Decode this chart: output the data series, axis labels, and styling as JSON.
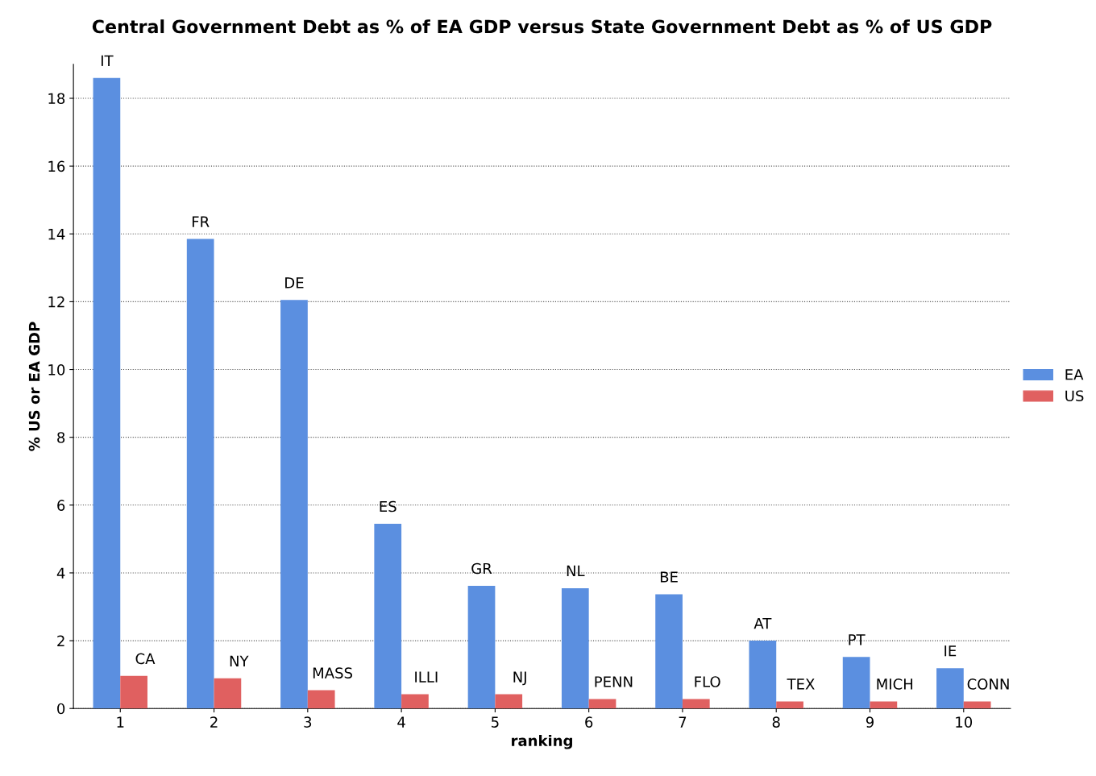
{
  "chart_data": {
    "type": "bar",
    "title": "Central Government Debt as % of EA GDP versus State Government Debt as % of US GDP",
    "xlabel": "ranking",
    "ylabel": "% US or EA GDP",
    "categories": [
      "1",
      "2",
      "3",
      "4",
      "5",
      "6",
      "7",
      "8",
      "9",
      "10"
    ],
    "series": [
      {
        "name": "EA",
        "color": "#5b8fe0",
        "values": [
          18.6,
          13.85,
          12.05,
          5.45,
          3.62,
          3.55,
          3.37,
          2.0,
          1.52,
          1.19
        ]
      },
      {
        "name": "US",
        "color": "#e06060",
        "values": [
          0.96,
          0.89,
          0.54,
          0.42,
          0.42,
          0.28,
          0.28,
          0.21,
          0.21,
          0.21
        ]
      }
    ],
    "ylim": [
      0,
      19
    ],
    "yticks": [
      0,
      2,
      4,
      6,
      8,
      10,
      12,
      14,
      16,
      18
    ],
    "grid": "y",
    "legend": "right",
    "annotations": [
      {
        "text": "IT",
        "x": "1",
        "y": 18.6
      },
      {
        "text": "FR",
        "x": "2",
        "y": 13.85
      },
      {
        "text": "DE",
        "x": "3",
        "y": 12.05
      },
      {
        "text": "ES",
        "x": "4",
        "y": 5.45
      },
      {
        "text": "GR",
        "x": "5",
        "y": 3.62
      },
      {
        "text": "NL",
        "x": "6",
        "y": 3.55
      },
      {
        "text": "BE",
        "x": "7",
        "y": 3.37
      },
      {
        "text": "AT",
        "x": "8",
        "y": 2.0
      },
      {
        "text": "PT",
        "x": "9",
        "y": 1.52
      },
      {
        "text": "IE",
        "x": "10",
        "y": 1.19
      },
      {
        "text": "CA",
        "x": "1",
        "y": 0.96
      },
      {
        "text": "NY",
        "x": "2",
        "y": 0.89
      },
      {
        "text": "MASS",
        "x": "3",
        "y": 0.54
      },
      {
        "text": "ILLI",
        "x": "4",
        "y": 0.42
      },
      {
        "text": "NJ",
        "x": "5",
        "y": 0.42
      },
      {
        "text": "PENN",
        "x": "6",
        "y": 0.28
      },
      {
        "text": "FLO",
        "x": "7",
        "y": 0.28
      },
      {
        "text": "TEX",
        "x": "8",
        "y": 0.21
      },
      {
        "text": "MICH",
        "x": "9",
        "y": 0.21
      },
      {
        "text": "CONN",
        "x": "10",
        "y": 0.21
      }
    ]
  }
}
